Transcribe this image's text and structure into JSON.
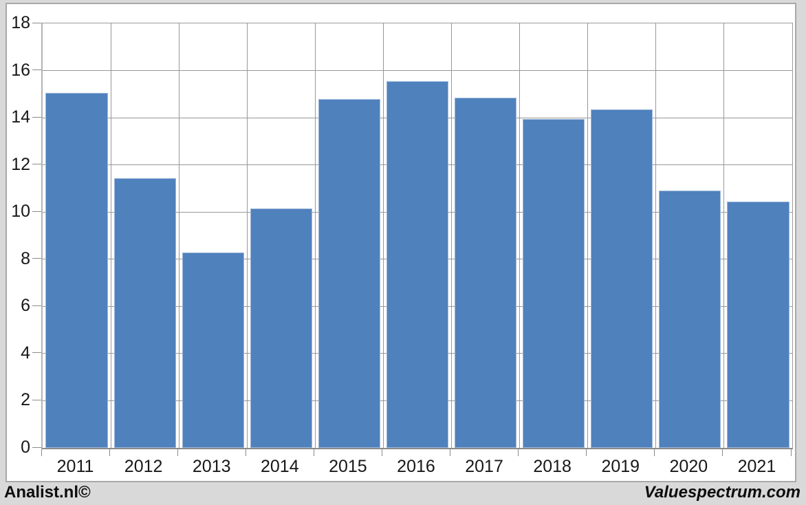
{
  "chart_data": {
    "type": "bar",
    "title": "",
    "xlabel": "",
    "ylabel": "",
    "categories": [
      "2011",
      "2012",
      "2013",
      "2014",
      "2015",
      "2016",
      "2017",
      "2018",
      "2019",
      "2020",
      "2021"
    ],
    "values": [
      15.05,
      11.45,
      8.3,
      10.15,
      14.8,
      15.55,
      14.85,
      13.95,
      14.35,
      10.9,
      10.45
    ],
    "ylim": [
      0,
      18
    ],
    "ytick_step": 2,
    "ytick_labels": [
      "0",
      "2",
      "4",
      "6",
      "8",
      "10",
      "12",
      "14",
      "16",
      "18"
    ],
    "grid": "horizontal and vertical major gridlines",
    "legend_position": "none",
    "bar_color": "#4f81bd",
    "bar_border_color": "#9db8da",
    "gridline_color": "#979797",
    "tick_color": "#8a8a8a",
    "plot_background": "#ffffff",
    "page_background": "#d9d9d9"
  },
  "footer": {
    "left_credit": "Analist.nl©",
    "right_credit": "Valuespectrum.com"
  }
}
